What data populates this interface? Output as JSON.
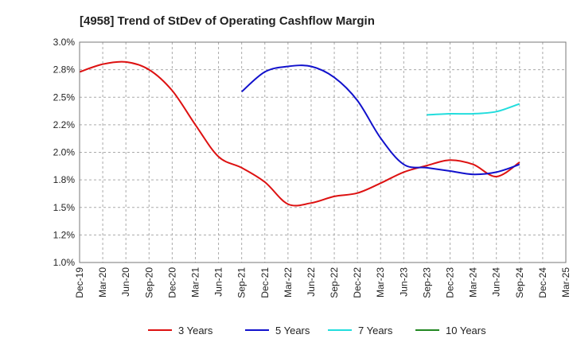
{
  "chart_data": {
    "type": "line",
    "title": "[4958]  Trend of StDev of Operating Cashflow Margin",
    "xlabel": "",
    "ylabel": "",
    "ylim": [
      1.0,
      3.0
    ],
    "y_ticks": [
      "1.0%",
      "1.2%",
      "1.5%",
      "1.8%",
      "2.0%",
      "2.2%",
      "2.5%",
      "2.8%",
      "3.0%"
    ],
    "x_tick_labels": [
      "Dec-19",
      "Mar-20",
      "Jun-20",
      "Sep-20",
      "Dec-20",
      "Mar-21",
      "Jun-21",
      "Sep-21",
      "Dec-21",
      "Mar-22",
      "Jun-22",
      "Sep-22",
      "Dec-22",
      "Mar-23",
      "Jun-23",
      "Sep-23",
      "Dec-23",
      "Mar-24",
      "Jun-24",
      "Sep-24",
      "Dec-24",
      "Mar-25"
    ],
    "grid": "dashed",
    "legend_position": "bottom",
    "series": [
      {
        "name": "3 Years",
        "color": "#dd1111",
        "x": [
          "Dec-19",
          "Mar-20",
          "Jun-20",
          "Sep-20",
          "Dec-20",
          "Mar-21",
          "Jun-21",
          "Sep-21",
          "Dec-21",
          "Mar-22",
          "Jun-22",
          "Sep-22",
          "Dec-22",
          "Mar-23",
          "Jun-23",
          "Sep-23",
          "Dec-23",
          "Mar-24",
          "Jun-24",
          "Sep-24"
        ],
        "values": [
          2.73,
          2.8,
          2.82,
          2.75,
          2.56,
          2.25,
          1.96,
          1.86,
          1.73,
          1.53,
          1.54,
          1.6,
          1.63,
          1.72,
          1.82,
          1.88,
          1.93,
          1.89,
          1.78,
          1.91
        ]
      },
      {
        "name": "5 Years",
        "color": "#1111cc",
        "x": [
          "Sep-21",
          "Dec-21",
          "Mar-22",
          "Jun-22",
          "Sep-22",
          "Dec-22",
          "Mar-23",
          "Jun-23",
          "Sep-23",
          "Dec-23",
          "Mar-24",
          "Jun-24",
          "Sep-24"
        ],
        "values": [
          2.55,
          2.73,
          2.78,
          2.78,
          2.68,
          2.47,
          2.13,
          1.89,
          1.86,
          1.83,
          1.8,
          1.82,
          1.89
        ]
      },
      {
        "name": "7 Years",
        "color": "#22dddd",
        "x": [
          "Sep-23",
          "Dec-23",
          "Mar-24",
          "Jun-24",
          "Sep-24"
        ],
        "values": [
          2.34,
          2.35,
          2.35,
          2.37,
          2.44
        ]
      },
      {
        "name": "10 Years",
        "color": "#228822",
        "x": [],
        "values": []
      }
    ]
  }
}
